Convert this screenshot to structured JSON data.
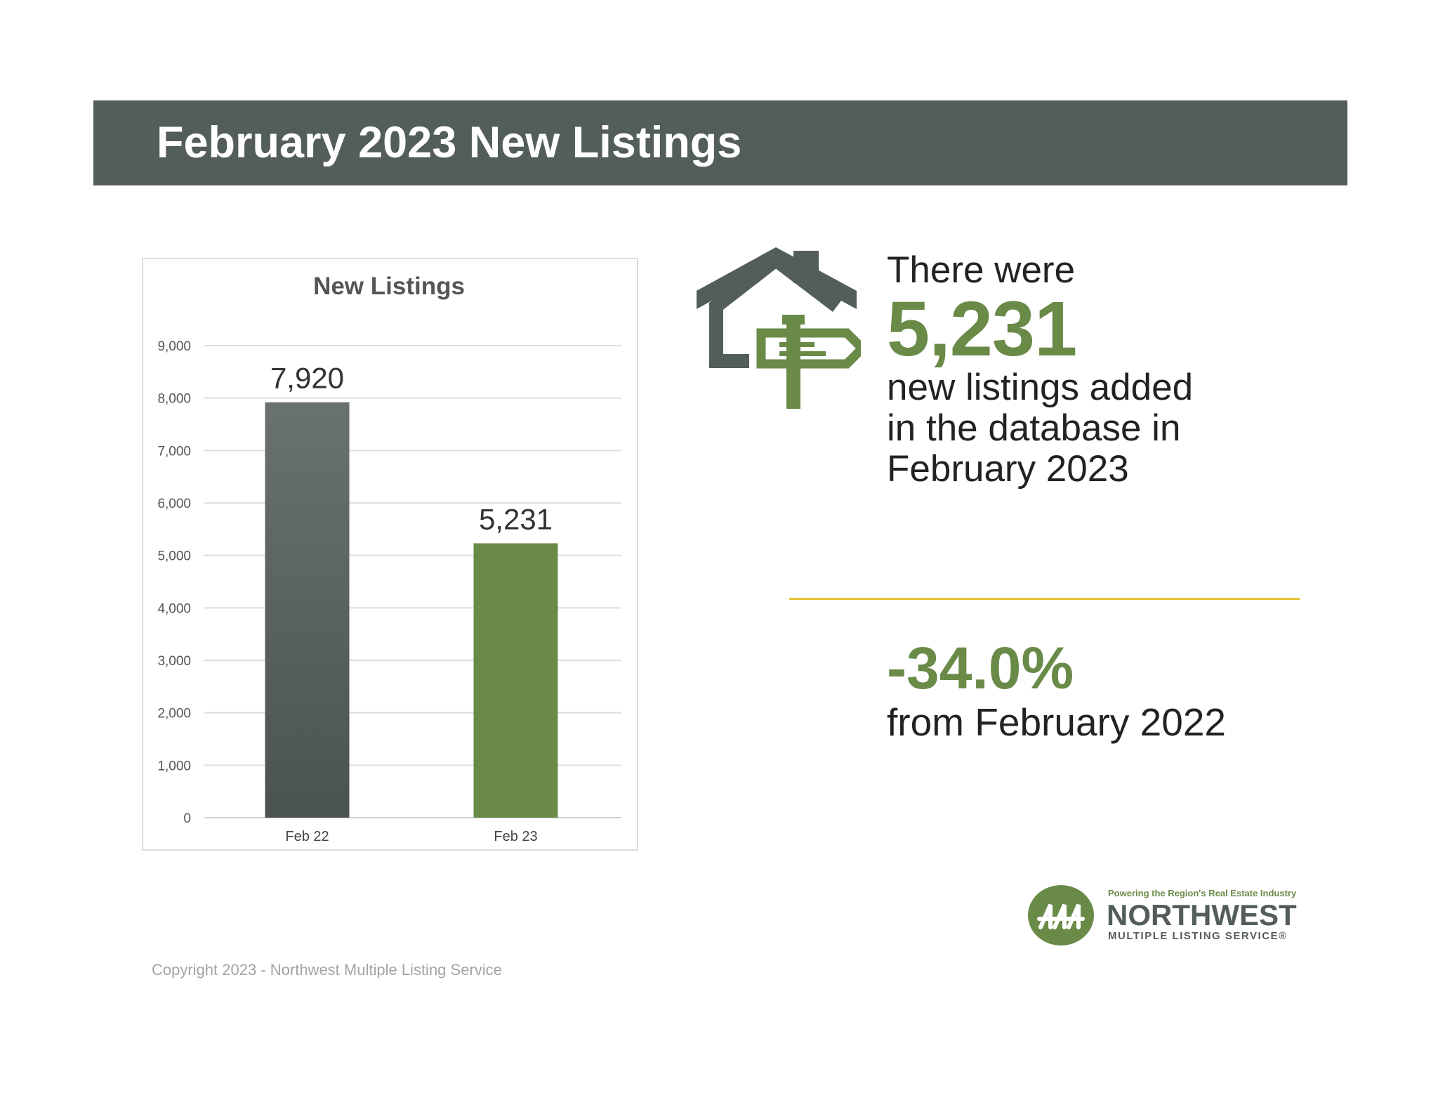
{
  "header": {
    "title": "February 2023 New Listings"
  },
  "chart_data": {
    "type": "bar",
    "title": "New Listings",
    "categories": [
      "Feb 22",
      "Feb 23"
    ],
    "values": [
      7920,
      5231
    ],
    "data_labels": [
      "7,920",
      "5,231"
    ],
    "bar_colors": [
      "#55605b",
      "#6a8a48"
    ],
    "ylim": [
      0,
      9000
    ],
    "yticks": [
      0,
      1000,
      2000,
      3000,
      4000,
      5000,
      6000,
      7000,
      8000,
      9000
    ],
    "ytick_labels": [
      "0",
      "1,000",
      "2,000",
      "3,000",
      "4,000",
      "5,000",
      "6,000",
      "7,000",
      "8,000",
      "9,000"
    ],
    "grid": true,
    "legend": false
  },
  "highlight": {
    "intro": "There were",
    "value": "5,231",
    "description": "new listings added in the database in February 2023"
  },
  "change": {
    "value": "-34.0%",
    "label": "from February 2022"
  },
  "logo": {
    "tagline": "Powering the Region's Real Estate Industry",
    "name": "NORTHWEST",
    "subtitle": "MULTIPLE LISTING SERVICE®"
  },
  "footer": {
    "copyright": "Copyright 2023 - Northwest Multiple Listing Service"
  },
  "colors": {
    "accent_green": "#6a8a48",
    "header_gray": "#535d59",
    "divider_yellow": "#e6c33b"
  },
  "icons": {
    "house": "house-with-signpost-icon"
  }
}
